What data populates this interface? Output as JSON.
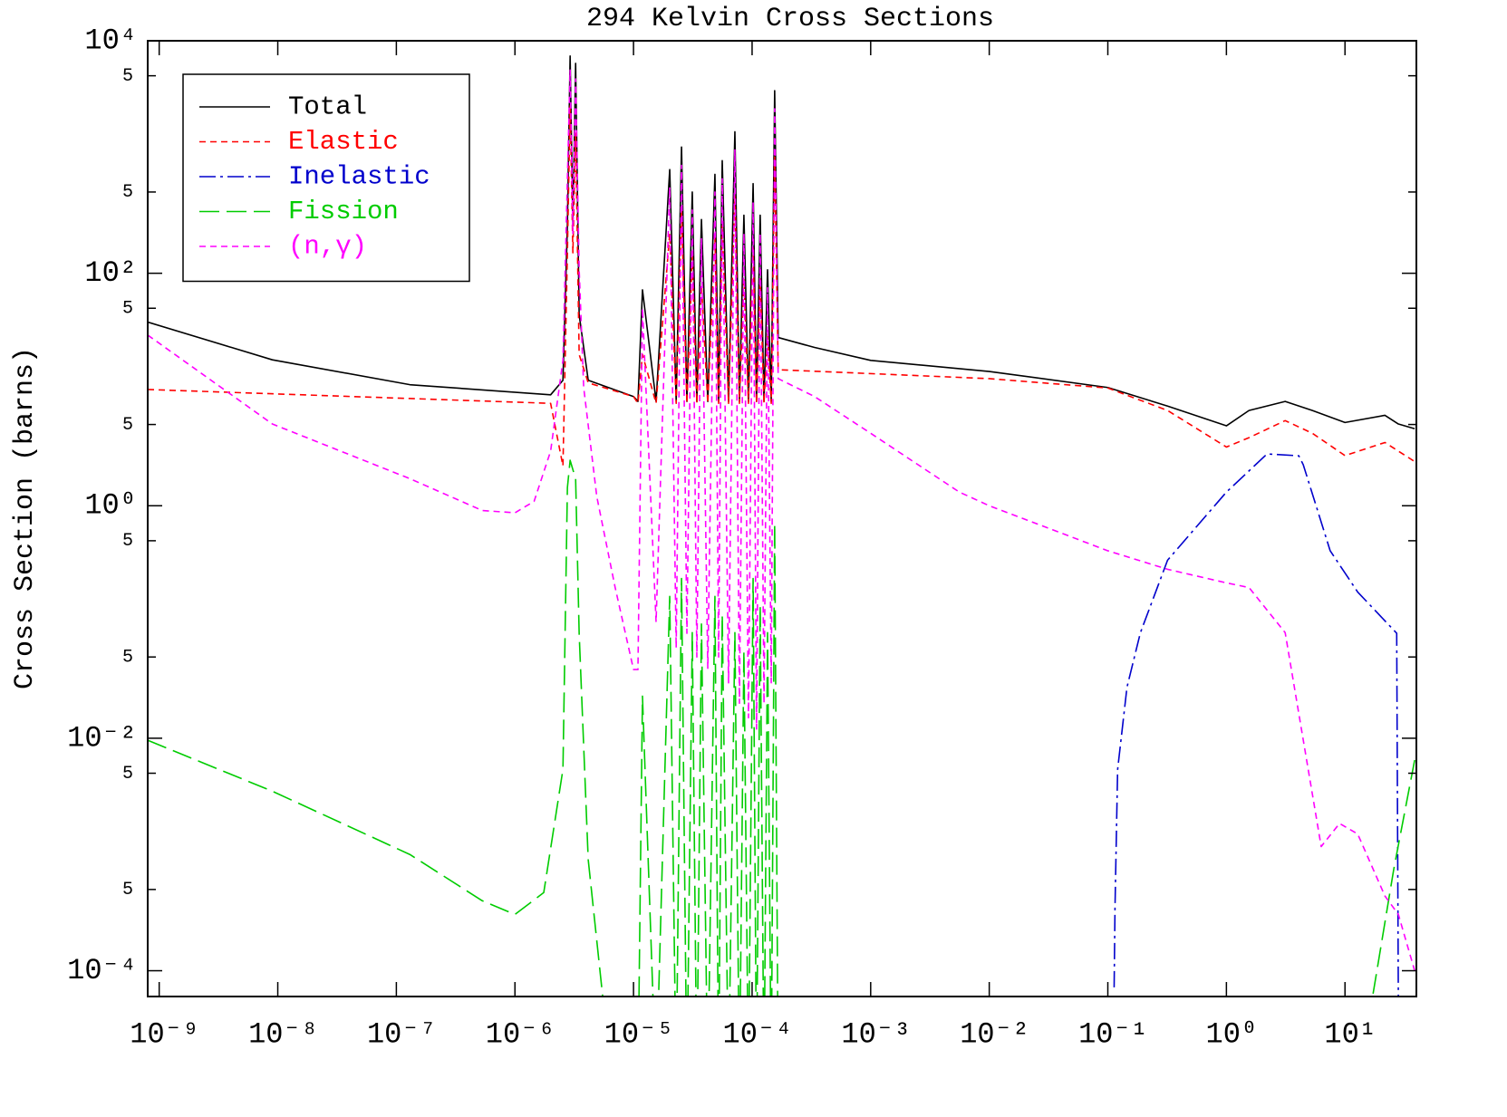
{
  "chart_data": {
    "type": "line",
    "title": "294 Kelvin Cross Sections",
    "y_label": "Cross Section (barns)",
    "xscale": "log",
    "yscale": "log",
    "xlim": [
      8e-10,
      40
    ],
    "ylim": [
      6e-05,
      10000
    ],
    "xticks": [
      {
        "value": 1e-09,
        "label": "10⁻⁹"
      },
      {
        "value": 1e-08,
        "label": "10⁻⁸"
      },
      {
        "value": 1e-07,
        "label": "10⁻⁷"
      },
      {
        "value": 1e-06,
        "label": "10⁻⁶"
      },
      {
        "value": 1e-05,
        "label": "10⁻⁵"
      },
      {
        "value": 0.0001,
        "label": "10⁻⁴"
      },
      {
        "value": 0.001,
        "label": "10⁻³"
      },
      {
        "value": 0.01,
        "label": "10⁻²"
      },
      {
        "value": 0.1,
        "label": "10⁻¹"
      },
      {
        "value": 1,
        "label": "10⁰"
      },
      {
        "value": 10,
        "label": "10¹"
      }
    ],
    "yticks": [
      {
        "value": 10000,
        "label": "10⁴"
      },
      {
        "value": 5000,
        "label": "5"
      },
      {
        "value": 500,
        "label": "5"
      },
      {
        "value": 100,
        "label": "10²"
      },
      {
        "value": 50,
        "label": "5"
      },
      5,
      {
        "value": 1,
        "label": "10⁰"
      },
      {
        "value": 0.5,
        "label": "5"
      },
      {
        "value": 0.05,
        "label": "5"
      },
      {
        "value": 0.01,
        "label": "10⁻²"
      },
      {
        "value": 0.005,
        "label": "5"
      },
      {
        "value": 0.0005,
        "label": "5"
      },
      {
        "value": 0.0001,
        "label": "10⁻⁴"
      }
    ],
    "legend": "upper left",
    "series": [
      {
        "name": "Total",
        "color": "#000000",
        "linestyle": "solid",
        "x": [
          8e-10,
          9e-09,
          1.3e-07,
          2e-06,
          2.54e-06,
          2.77e-06,
          2.92e-06,
          3.08e-06,
          3.25e-06,
          3.48e-06,
          4.15e-06,
          1e-05,
          1.09e-05,
          1.19e-05,
          1.55e-05,
          2.02e-05,
          2.29e-05,
          2.54e-05,
          2.82e-05,
          3.13e-05,
          3.42e-05,
          3.74e-05,
          4.23e-05,
          4.86e-05,
          5.22e-05,
          5.6e-05,
          6.33e-05,
          7.16e-05,
          7.82e-05,
          8.53e-05,
          9.32e-05,
          0.000102,
          0.000109,
          0.000117,
          0.000126,
          0.000135,
          0.000145,
          0.000155,
          0.000166,
          0.000336,
          0.001,
          0.01,
          0.1,
          0.319,
          1,
          1.55,
          3.13,
          5.31,
          10,
          21.7,
          28.2,
          38.7
        ],
        "values": [
          38,
          18,
          11,
          9,
          12,
          260,
          7400,
          260,
          6400,
          44,
          12,
          8.7,
          7.9,
          72,
          7.9,
          780,
          7.9,
          1220,
          7.9,
          500,
          7.9,
          290,
          7.9,
          710,
          7.9,
          930,
          7.9,
          1650,
          7.9,
          316,
          7.9,
          590,
          7.9,
          316,
          7.9,
          107,
          7.9,
          3720,
          28,
          23,
          17.8,
          14.3,
          10.4,
          7.2,
          4.87,
          6.6,
          7.9,
          6.6,
          5.2,
          6.0,
          5.05,
          4.6
        ]
      },
      {
        "name": "Elastic",
        "color": "#ff0000",
        "linestyle": "dashed",
        "x": [
          8e-10,
          2e-06,
          2.54e-06,
          2.77e-06,
          2.92e-06,
          3.08e-06,
          3.25e-06,
          3.48e-06,
          4.15e-06,
          1e-05,
          1.09e-05,
          1.19e-05,
          1.55e-05,
          2.02e-05,
          2.29e-05,
          2.54e-05,
          2.82e-05,
          3.13e-05,
          3.42e-05,
          3.74e-05,
          4.23e-05,
          4.86e-05,
          5.22e-05,
          5.6e-05,
          6.33e-05,
          7.16e-05,
          7.82e-05,
          8.53e-05,
          9.32e-05,
          0.000102,
          0.000109,
          0.000117,
          0.000126,
          0.000135,
          0.000145,
          0.000155,
          0.000166,
          0.01,
          0.1,
          0.319,
          1,
          1.55,
          3.13,
          5.31,
          10,
          21.7,
          38.7
        ],
        "values": [
          10,
          7.6,
          2.2,
          150,
          2750,
          150,
          1600,
          20,
          11.4,
          8.7,
          7.6,
          20,
          7.6,
          220,
          7.6,
          350,
          7.6,
          140,
          7.6,
          80,
          7.6,
          200,
          7.6,
          260,
          7.6,
          460,
          7.6,
          90,
          7.6,
          165,
          7.6,
          90,
          7.6,
          30,
          7.6,
          1000,
          14.8,
          12.4,
          10.3,
          6.6,
          3.2,
          3.85,
          5.4,
          4.2,
          2.7,
          3.5,
          2.4
        ]
      },
      {
        "name": "Inelastic",
        "color": "#0000cc",
        "linestyle": "dashdot",
        "x": [
          0.113,
          0.115,
          0.121,
          0.145,
          0.188,
          0.319,
          1,
          2.2,
          4.08,
          4.45,
          7.5,
          12.8,
          27.3,
          28.2
        ],
        "values": [
          7.2e-05,
          0.00036,
          0.0054,
          0.0274,
          0.0806,
          0.34,
          1.31,
          2.79,
          2.69,
          2.25,
          0.41,
          0.181,
          0.08,
          5e-05
        ]
      },
      {
        "name": "Fission",
        "color": "#00cc00",
        "linestyle": "longdash",
        "x": [
          8e-10,
          9e-09,
          1.3e-07,
          5.3e-07,
          1e-06,
          1.75e-06,
          2.54e-06,
          2.77e-06,
          2.92e-06,
          3.25e-06,
          3.48e-06,
          4.15e-06,
          5.6e-06,
          1.09e-05,
          1.19e-05,
          1.55e-05,
          2.02e-05,
          2.29e-05,
          2.54e-05,
          2.82e-05,
          3.13e-05,
          3.42e-05,
          3.74e-05,
          4.23e-05,
          4.86e-05,
          5.22e-05,
          5.6e-05,
          6.33e-05,
          7.16e-05,
          7.82e-05,
          8.53e-05,
          9.32e-05,
          0.000102,
          0.000109,
          0.000117,
          0.000126,
          0.000135,
          0.000145,
          0.000155,
          0.000166,
          16.6,
          25.8,
          38.7
        ],
        "values": [
          0.0096,
          0.0035,
          0.001,
          0.0004,
          0.000305,
          0.00047,
          0.0054,
          1.43,
          2.46,
          1.7,
          0.08,
          0.0009,
          5e-05,
          1e-05,
          0.023,
          1e-05,
          0.166,
          1e-05,
          0.237,
          1e-05,
          0.081,
          1e-05,
          0.096,
          1e-05,
          0.166,
          1e-05,
          0.115,
          1e-05,
          0.081,
          1e-05,
          0.056,
          1e-05,
          0.237,
          1e-05,
          0.138,
          1e-05,
          0.081,
          1e-05,
          0.7,
          1e-05,
          5e-05,
          0.00075,
          0.0065
        ]
      },
      {
        "name": "(n,γ)",
        "color": "#ff00ff",
        "linestyle": "dashed",
        "x": [
          8e-10,
          9e-09,
          1.3e-07,
          5.3e-07,
          1e-06,
          1.45e-06,
          2e-06,
          2.54e-06,
          2.77e-06,
          2.92e-06,
          3.08e-06,
          3.25e-06,
          3.48e-06,
          3.8e-06,
          4.9e-06,
          7e-06,
          1e-05,
          1.09e-05,
          1.19e-05,
          1.55e-05,
          2.02e-05,
          2.29e-05,
          2.54e-05,
          2.82e-05,
          3.13e-05,
          3.42e-05,
          3.74e-05,
          4.23e-05,
          4.86e-05,
          5.22e-05,
          5.6e-05,
          6.33e-05,
          7.16e-05,
          7.82e-05,
          8.53e-05,
          9.32e-05,
          0.000102,
          0.000109,
          0.000117,
          0.000126,
          0.000135,
          0.000145,
          0.000155,
          0.000166,
          0.000336,
          0.001,
          0.0056,
          0.01,
          0.1,
          0.319,
          1,
          1.55,
          3.13,
          6.3,
          9,
          12.8,
          21.7,
          28.2,
          38.7
        ],
        "values": [
          29.4,
          5.05,
          1.71,
          0.91,
          0.87,
          1.09,
          2.95,
          17.8,
          650,
          5600,
          220,
          4700,
          108,
          10.4,
          1.2,
          0.198,
          0.039,
          0.039,
          50,
          0.1,
          550,
          0.06,
          850,
          0.08,
          350,
          0.05,
          200,
          0.04,
          500,
          0.05,
          650,
          0.03,
          1150,
          0.02,
          220,
          0.015,
          410,
          0.012,
          220,
          0.02,
          75,
          0.03,
          2600,
          12.4,
          8.7,
          4.2,
          1.31,
          1.0,
          0.41,
          0.284,
          0.217,
          0.198,
          0.081,
          0.00117,
          0.00185,
          0.0015,
          0.00044,
          0.000305,
          0.0001
        ]
      }
    ]
  }
}
